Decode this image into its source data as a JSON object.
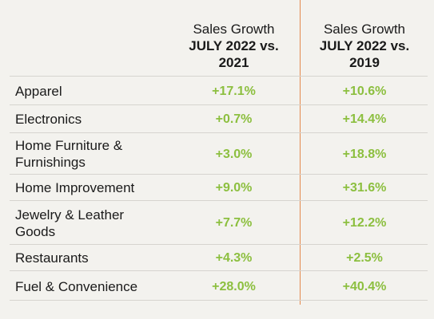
{
  "chart_data": {
    "type": "table",
    "columns": [
      {
        "line1": "Sales Growth",
        "line2": "JULY 2022 vs.",
        "line3": "2021"
      },
      {
        "line1": "Sales Growth",
        "line2": "JULY 2022 vs.",
        "line3": "2019"
      }
    ],
    "rows": [
      {
        "category": "Apparel",
        "values": [
          "+17.1%",
          "+10.6%"
        ]
      },
      {
        "category": "Electronics",
        "values": [
          "+0.7%",
          "+14.4%"
        ]
      },
      {
        "category": "Home Furniture & Furnishings",
        "values": [
          "+3.0%",
          "+18.8%"
        ]
      },
      {
        "category": "Home Improvement",
        "values": [
          "+9.0%",
          "+31.6%"
        ]
      },
      {
        "category": "Jewelry & Leather Goods",
        "values": [
          "+7.7%",
          "+12.2%"
        ]
      },
      {
        "category": "Restaurants",
        "values": [
          "+4.3%",
          "+2.5%"
        ]
      },
      {
        "category": "Fuel & Convenience",
        "values": [
          "+28.0%",
          "+40.4%"
        ]
      }
    ],
    "colors": {
      "value_text": "#8cbf3f",
      "divider": "#e48a4e",
      "background": "#f3f2ee"
    }
  }
}
